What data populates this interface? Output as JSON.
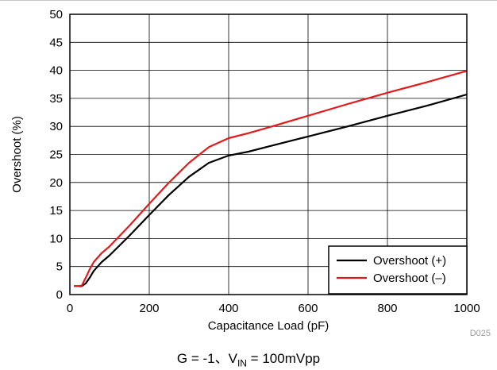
{
  "chart_data": {
    "type": "line",
    "title": "",
    "xlabel": "Capacitance Load (pF)",
    "ylabel": "Overshoot (%)",
    "xlim": [
      0,
      1000
    ],
    "ylim": [
      0,
      50
    ],
    "xticks": [
      0,
      200,
      400,
      600,
      800,
      1000
    ],
    "yticks": [
      0,
      5,
      10,
      15,
      20,
      25,
      30,
      35,
      40,
      45,
      50
    ],
    "grid": true,
    "legend_position": "bottom-right",
    "series": [
      {
        "name": "Overshoot (+)",
        "color": "#000000",
        "x": [
          10,
          20,
          30,
          40,
          50,
          60,
          70,
          80,
          100,
          150,
          200,
          250,
          300,
          350,
          400,
          450,
          500,
          600,
          700,
          800,
          900,
          1000
        ],
        "y": [
          1.5,
          1.5,
          1.5,
          2.0,
          3.0,
          4.2,
          5.0,
          5.8,
          7.0,
          10.5,
          14.2,
          17.8,
          21.0,
          23.5,
          24.8,
          25.5,
          26.4,
          28.2,
          30.0,
          31.9,
          33.7,
          35.7
        ]
      },
      {
        "name": "Overshoot (–)",
        "color": "#e31a1c",
        "x": [
          10,
          20,
          30,
          40,
          50,
          60,
          70,
          80,
          100,
          150,
          200,
          250,
          300,
          350,
          400,
          450,
          500,
          600,
          700,
          800,
          900,
          1000
        ],
        "y": [
          1.5,
          1.5,
          1.6,
          3.0,
          4.5,
          5.8,
          6.6,
          7.4,
          8.6,
          12.3,
          16.2,
          20.0,
          23.5,
          26.3,
          27.9,
          28.8,
          29.8,
          31.9,
          34.0,
          36.0,
          37.9,
          39.9
        ]
      }
    ]
  },
  "figure_code": "D025",
  "caption": {
    "prefix": "G = -1、V",
    "subscript": "IN",
    "suffix": " = 100mVpp"
  }
}
